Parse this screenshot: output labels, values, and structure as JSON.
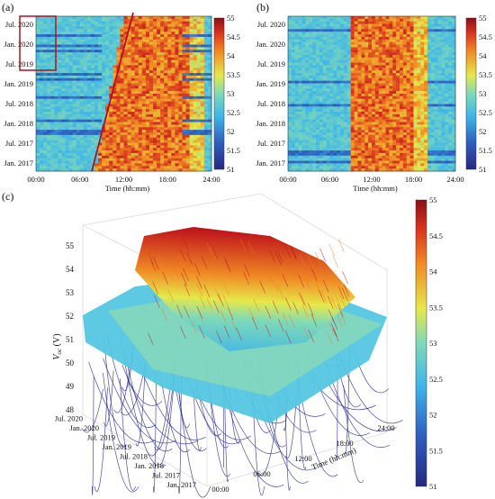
{
  "chart_data": [
    {
      "panel": "(a)",
      "type": "heatmap",
      "xlabel": "Time (hh:mm)",
      "x_ticks": [
        "00:00",
        "06:00",
        "12:00",
        "18:00",
        "24:00"
      ],
      "y_ticks": [
        "Jan. 2017",
        "Jul. 2017",
        "Jan. 2018",
        "Jul. 2018",
        "Jan. 2019",
        "Jul. 2019",
        "Jan. 2020",
        "Jul. 2020"
      ],
      "colorbar": {
        "min": 51,
        "max": 55,
        "ticks": [
          "51",
          "51.5",
          "52",
          "52.5",
          "53",
          "53.5",
          "54",
          "54.5",
          "55"
        ]
      },
      "annotations": [
        "red rectangle over early morning hours, Jul. 2019 to Jul. 2020",
        "sloped red line from 06:00 at Jan. 2017 to 14:00 at Jul. 2020"
      ]
    },
    {
      "panel": "(b)",
      "type": "heatmap",
      "xlabel": "Time (hh:mm)",
      "x_ticks": [
        "00:00",
        "06:00",
        "12:00",
        "18:00",
        "24:00"
      ],
      "y_ticks": [
        "Jan. 2017",
        "Jul. 2017",
        "Jan. 2018",
        "Jul. 2018",
        "Jan. 2019",
        "Jul. 2019",
        "Jan. 2020",
        "Jul. 2020"
      ],
      "colorbar": {
        "min": 51,
        "max": 55,
        "ticks": [
          "51",
          "51.5",
          "52",
          "52.5",
          "53",
          "53.5",
          "54",
          "54.5",
          "55"
        ]
      }
    },
    {
      "panel": "(c)",
      "type": "surface",
      "zlabel": "V_oc (V)",
      "xlabel": "Time (hh:mm)",
      "x_ticks": [
        "00:00",
        "06:00",
        "12:00",
        "18:00",
        "24:00"
      ],
      "y_ticks": [
        "Jan. 2017",
        "Jul. 2017",
        "Jan. 2018",
        "Jul. 2018",
        "Jan. 2019",
        "Jul. 2019",
        "Jan. 2020",
        "Jul. 2020"
      ],
      "z_ticks": [
        "48",
        "49",
        "50",
        "51",
        "52",
        "53",
        "54",
        "55"
      ],
      "zlim": [
        48,
        55
      ],
      "colorbar": {
        "min": 51,
        "max": 55,
        "ticks": [
          "51",
          "51.5",
          "52",
          "52.5",
          "53",
          "53.5",
          "54",
          "54.5",
          "55"
        ]
      }
    }
  ],
  "labels": {
    "a": "(a)",
    "b": "(b)",
    "c": "(c)",
    "zlabel_main": "V",
    "zlabel_sub": "oc",
    "zlabel_unit": " (V)"
  },
  "colors": {
    "low": "#2b2f8e",
    "mid_low": "#3fb6e8",
    "mid": "#e6e84a",
    "mid_high": "#f08a24",
    "high": "#c0141c",
    "annotation": "#b01020"
  }
}
